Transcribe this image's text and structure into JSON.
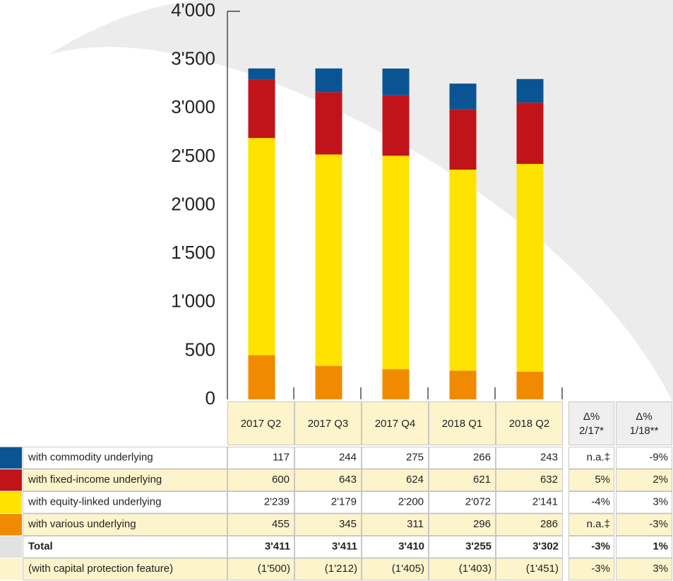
{
  "chart_data": {
    "type": "bar",
    "stacked": true,
    "categories": [
      "2017 Q2",
      "2017 Q3",
      "2017 Q4",
      "2018 Q1",
      "2018 Q2"
    ],
    "series": [
      {
        "name": "with commodity underlying",
        "color": "#0a5494",
        "values": [
          117,
          244,
          275,
          266,
          243
        ],
        "value_labels": [
          "117",
          "244",
          "275",
          "266",
          "243"
        ],
        "changes": [
          "n.a.‡",
          "-9%"
        ]
      },
      {
        "name": "with fixed-income underlying",
        "color": "#c0141a",
        "values": [
          600,
          643,
          624,
          621,
          632
        ],
        "value_labels": [
          "600",
          "643",
          "624",
          "621",
          "632"
        ],
        "changes": [
          "5%",
          "2%"
        ]
      },
      {
        "name": "with equity-linked underlying",
        "color": "#ffe300",
        "values": [
          2239,
          2179,
          2200,
          2072,
          2141
        ],
        "value_labels": [
          "2'239",
          "2'179",
          "2'200",
          "2'072",
          "2'141"
        ],
        "changes": [
          "-4%",
          "3%"
        ]
      },
      {
        "name": "with various underlying",
        "color": "#f08a00",
        "values": [
          455,
          345,
          311,
          296,
          286
        ],
        "value_labels": [
          "455",
          "345",
          "311",
          "296",
          "286"
        ],
        "changes": [
          "n.a.‡",
          "-3%"
        ]
      }
    ],
    "ylim": [
      0,
      4000
    ],
    "yticks": [
      0,
      500,
      {
        "value": 1000,
        "label": "1'000"
      },
      {
        "value": 1500,
        "label": "1'500"
      },
      {
        "value": 2000,
        "label": "2'000"
      },
      {
        "value": 2500,
        "label": "2'500"
      },
      {
        "value": 3000,
        "label": "3'000"
      },
      {
        "value": 3500,
        "label": "3'500"
      },
      {
        "value": 4000,
        "label": "4'000"
      }
    ]
  },
  "table": {
    "change_headers": [
      [
        "Δ%",
        "2/17*"
      ],
      [
        "Δ%",
        "1/18**"
      ]
    ],
    "total": {
      "label": "Total",
      "cells": [
        "3'411",
        "3'411",
        "3'410",
        "3'255",
        "3'302",
        "-3%",
        "1%"
      ]
    },
    "capital_protection": {
      "label": "(with capital protection feature)",
      "cells": [
        "(1'500)",
        "(1'212)",
        "(1'405)",
        "(1'403)",
        "(1'451)",
        "-3%",
        "3%"
      ]
    }
  }
}
